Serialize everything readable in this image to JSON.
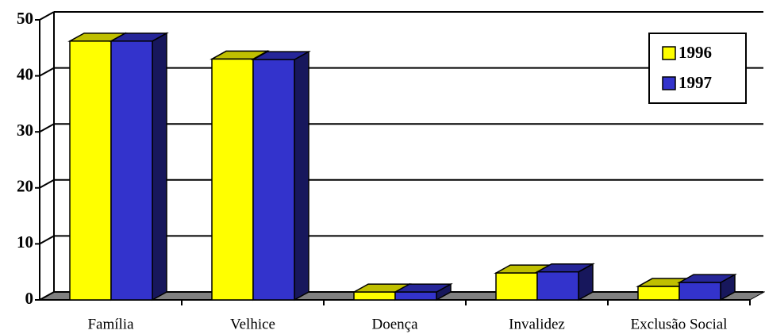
{
  "chart_data": {
    "type": "bar3d",
    "categories": [
      "Família",
      "Velhice",
      "Doença",
      "Invalidez",
      "Exclusão Social"
    ],
    "series": [
      {
        "name": "1996",
        "color": "#ffff00",
        "values": [
          46.2,
          43.0,
          1.4,
          4.8,
          2.4
        ]
      },
      {
        "name": "1997",
        "color": "#3333cc",
        "values": [
          46.2,
          42.9,
          1.4,
          5.0,
          3.1
        ]
      }
    ],
    "ylim": [
      0,
      50
    ],
    "yticks": [
      0,
      10,
      20,
      30,
      40,
      50
    ],
    "grid": true,
    "legend": "top-right"
  }
}
